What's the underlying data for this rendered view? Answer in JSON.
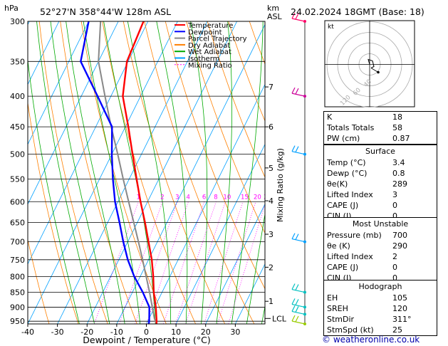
{
  "header": {
    "hpa_label": "hPa",
    "location": "52°27'N 358°44'W 128m ASL",
    "km_label": "km",
    "asl_label": "ASL",
    "datetime": "24.02.2024 18GMT (Base: 18)"
  },
  "legend": [
    {
      "label": "Temperature",
      "color": "#ff0000"
    },
    {
      "label": "Dewpoint",
      "color": "#0000ff"
    },
    {
      "label": "Parcel Trajectory",
      "color": "#888888"
    },
    {
      "label": "Dry Adiabat",
      "color": "#ff8000"
    },
    {
      "label": "Wet Adiabat",
      "color": "#00aa00"
    },
    {
      "label": "Isotherm",
      "color": "#00a0ff"
    },
    {
      "label": "Mixing Ratio",
      "color": "#ff00ff"
    }
  ],
  "chart_data": {
    "type": "line",
    "xlabel": "Dewpoint / Temperature (°C)",
    "ylabel": "",
    "mixing_label": "Mixing Ratio (g/kg)",
    "xlim": [
      -40,
      40
    ],
    "ylim": [
      960,
      300
    ],
    "xticks": [
      -40,
      -30,
      -20,
      -10,
      0,
      10,
      20,
      30
    ],
    "pressure_levels": [
      300,
      350,
      400,
      450,
      500,
      550,
      600,
      650,
      700,
      750,
      800,
      850,
      900,
      950
    ],
    "km_ticks": [
      {
        "label": "1",
        "p": 880
      },
      {
        "label": "2",
        "p": 772
      },
      {
        "label": "3",
        "p": 680
      },
      {
        "label": "4",
        "p": 598
      },
      {
        "label": "5",
        "p": 527
      },
      {
        "label": "6",
        "p": 450
      },
      {
        "label": "7",
        "p": 386
      }
    ],
    "lcl_label": "LCL",
    "lcl_p": 940,
    "mixing_ratio_labels": [
      "1",
      "2",
      "3",
      "4",
      "6",
      "8",
      "10",
      "15",
      "20",
      "25"
    ],
    "series": [
      {
        "name": "Temperature",
        "color": "#ff0000",
        "points": [
          [
            960,
            3.4
          ],
          [
            950,
            3.0
          ],
          [
            900,
            0.4
          ],
          [
            850,
            -2.8
          ],
          [
            800,
            -5.6
          ],
          [
            750,
            -8.9
          ],
          [
            700,
            -13.0
          ],
          [
            650,
            -17.4
          ],
          [
            600,
            -22.4
          ],
          [
            550,
            -27.5
          ],
          [
            500,
            -33.0
          ],
          [
            450,
            -39.0
          ],
          [
            400,
            -46.0
          ],
          [
            350,
            -50.4
          ],
          [
            300,
            -51.5
          ]
        ]
      },
      {
        "name": "Dewpoint",
        "color": "#0000ff",
        "points": [
          [
            960,
            0.8
          ],
          [
            950,
            0.5
          ],
          [
            900,
            -1.8
          ],
          [
            850,
            -6.5
          ],
          [
            800,
            -12.0
          ],
          [
            750,
            -17.0
          ],
          [
            700,
            -21.5
          ],
          [
            650,
            -26.0
          ],
          [
            600,
            -31.0
          ],
          [
            550,
            -35.5
          ],
          [
            500,
            -40.0
          ],
          [
            450,
            -44.5
          ],
          [
            400,
            -54.5
          ],
          [
            350,
            -66.0
          ],
          [
            300,
            -70.0
          ]
        ]
      },
      {
        "name": "Parcel Trajectory",
        "color": "#888888",
        "points": [
          [
            960,
            3.4
          ],
          [
            940,
            1.8
          ],
          [
            900,
            -0.8
          ],
          [
            850,
            -4.2
          ],
          [
            800,
            -8.0
          ],
          [
            750,
            -12.0
          ],
          [
            700,
            -16.4
          ],
          [
            650,
            -21.2
          ],
          [
            600,
            -26.4
          ],
          [
            550,
            -32.0
          ],
          [
            500,
            -38.0
          ],
          [
            450,
            -44.8
          ],
          [
            400,
            -52.0
          ],
          [
            350,
            -60.0
          ],
          [
            300,
            -66.0
          ]
        ]
      }
    ],
    "wind_barbs": [
      {
        "p": 300,
        "color": "#ff0066"
      },
      {
        "p": 400,
        "color": "#cc0099"
      },
      {
        "p": 500,
        "color": "#00a0ff"
      },
      {
        "p": 700,
        "color": "#00a0ff"
      },
      {
        "p": 850,
        "color": "#00c0c0"
      },
      {
        "p": 900,
        "color": "#00c0c0"
      },
      {
        "p": 925,
        "color": "#00c0c0"
      },
      {
        "p": 960,
        "color": "#99cc00"
      }
    ]
  },
  "hodograph": {
    "unit": "kt",
    "ring_labels": [
      "40",
      "60",
      "120"
    ]
  },
  "indices": [
    {
      "label": "K",
      "value": "18"
    },
    {
      "label": "Totals Totals",
      "value": "58"
    },
    {
      "label": "PW (cm)",
      "value": "0.87"
    }
  ],
  "surface": {
    "title": "Surface",
    "rows": [
      {
        "label": "Temp (°C)",
        "value": "3.4"
      },
      {
        "label": "Dewp (°C)",
        "value": "0.8"
      },
      {
        "label": "θe(K)",
        "value": "289"
      },
      {
        "label": "Lifted Index",
        "value": "3"
      },
      {
        "label": "CAPE (J)",
        "value": "0"
      },
      {
        "label": "CIN (J)",
        "value": "0"
      }
    ]
  },
  "most_unstable": {
    "title": "Most Unstable",
    "rows": [
      {
        "label": "Pressure (mb)",
        "value": "700"
      },
      {
        "label": "θe (K)",
        "value": "290"
      },
      {
        "label": "Lifted Index",
        "value": "2"
      },
      {
        "label": "CAPE (J)",
        "value": "0"
      },
      {
        "label": "CIN (J)",
        "value": "0"
      }
    ]
  },
  "hodo_params": {
    "title": "Hodograph",
    "rows": [
      {
        "label": "EH",
        "value": "105"
      },
      {
        "label": "SREH",
        "value": "120"
      },
      {
        "label": "StmDir",
        "value": "311°"
      },
      {
        "label": "StmSpd (kt)",
        "value": "25"
      }
    ]
  },
  "copyright": "© weatheronline.co.uk"
}
